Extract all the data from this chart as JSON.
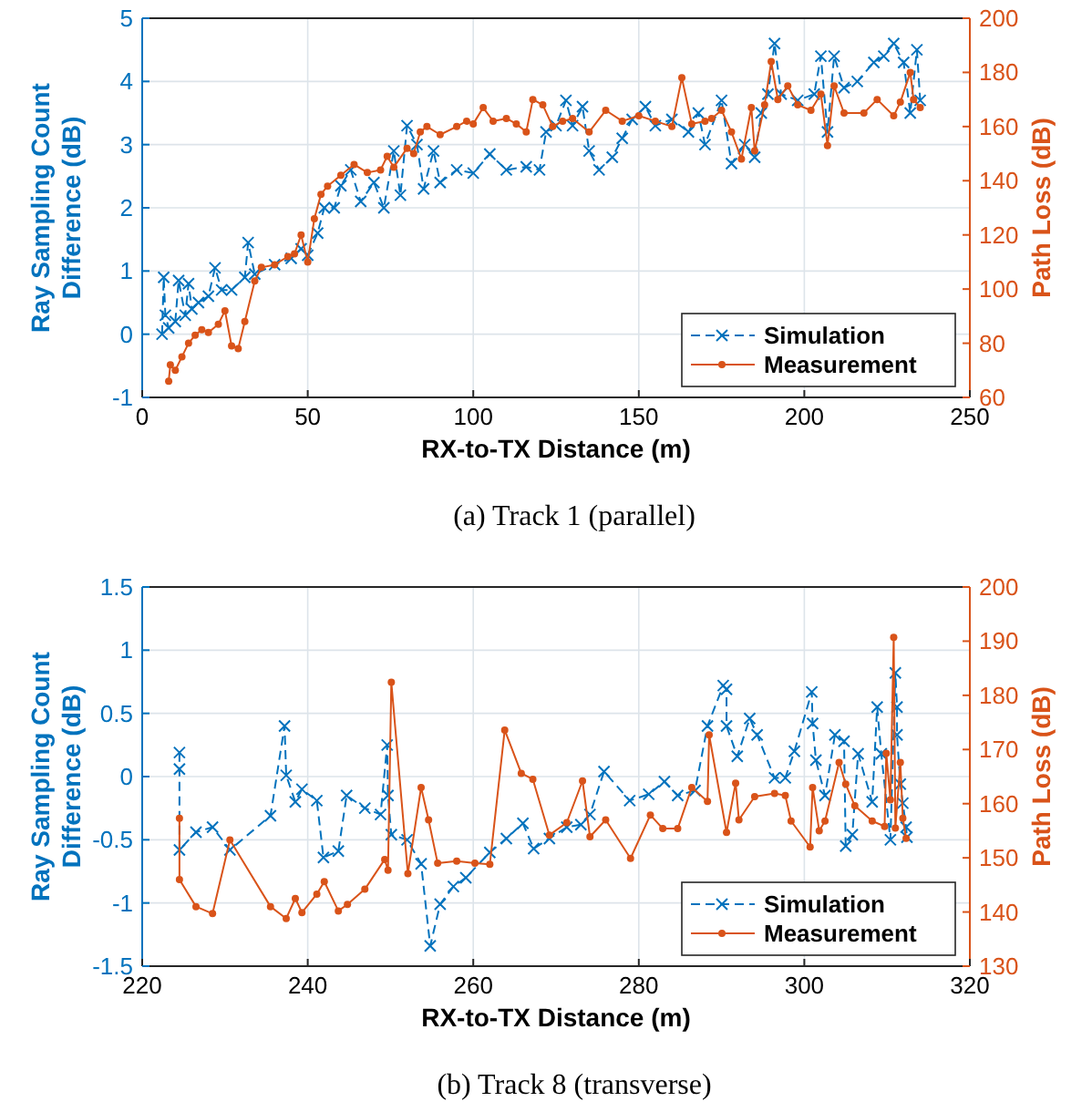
{
  "chart_data": [
    {
      "type": "line",
      "xlabel": "RX-to-TX Distance (m)",
      "ylabel": "Ray Sampling Count Difference (dB)",
      "y2label": "Path Loss (dB)",
      "annotations": [
        "(a) Track 1 (parallel)"
      ],
      "xlim": [
        0,
        250
      ],
      "xticks": [
        0,
        50,
        100,
        150,
        200,
        250
      ],
      "ylim": [
        -1,
        5
      ],
      "yticks": [
        -1,
        0,
        1,
        2,
        3,
        4,
        5
      ],
      "y2lim": [
        60,
        200
      ],
      "y2ticks": [
        60,
        80,
        100,
        120,
        140,
        160,
        180,
        200
      ],
      "grid": true,
      "legend": "bottom right",
      "series": [
        {
          "name": "Simulation",
          "color": "#0072bd",
          "axis": "y",
          "marker": "cross",
          "line_style": "dashed",
          "x": [
            6,
            6.5,
            7,
            8,
            10,
            11,
            13,
            14,
            15,
            17,
            20,
            22,
            24,
            27,
            31,
            32,
            34,
            40,
            45,
            48,
            50,
            53,
            55,
            58,
            60,
            63,
            66,
            70,
            73,
            76,
            78,
            80,
            83,
            85,
            88,
            90,
            95,
            100,
            105,
            110,
            116,
            120,
            122,
            125,
            128,
            130,
            133,
            135,
            138,
            142,
            145,
            148,
            152,
            155,
            160,
            165,
            168,
            170,
            175,
            178,
            182,
            185,
            187,
            189,
            191,
            193,
            198,
            203,
            205,
            207,
            209,
            212,
            216,
            221,
            224,
            227,
            230,
            232,
            234,
            235
          ],
          "values": [
            0,
            0.9,
            0.3,
            0.1,
            0.2,
            0.85,
            0.3,
            0.8,
            0.4,
            0.5,
            0.6,
            1.05,
            0.7,
            0.7,
            0.9,
            1.45,
            0.95,
            1.1,
            1.2,
            1.35,
            1.25,
            1.6,
            2,
            2,
            2.35,
            2.6,
            2.1,
            2.4,
            2,
            2.9,
            2.2,
            3.3,
            3,
            2.3,
            2.9,
            2.4,
            2.6,
            2.55,
            2.85,
            2.6,
            2.65,
            2.6,
            3.2,
            3.3,
            3.7,
            3.3,
            3.6,
            2.9,
            2.6,
            2.8,
            3.1,
            3.4,
            3.6,
            3.3,
            3.4,
            3.2,
            3.5,
            3,
            3.7,
            2.7,
            3,
            2.8,
            3.5,
            3.8,
            4.6,
            3.8,
            3.7,
            3.8,
            4.4,
            3.2,
            4.4,
            3.9,
            4,
            4.3,
            4.4,
            4.6,
            4.3,
            3.5,
            4.5,
            3.7
          ]
        },
        {
          "name": "Measurement",
          "color": "#d95319",
          "axis": "y2",
          "marker": "circle",
          "line_style": "solid",
          "x": [
            8,
            8.5,
            10,
            12,
            14,
            16,
            18,
            20,
            23,
            25,
            27,
            29,
            31,
            34,
            36,
            40,
            44,
            46,
            48,
            50,
            52,
            54,
            56,
            60,
            64,
            68,
            72,
            74,
            76,
            80,
            82,
            84,
            86,
            90,
            95,
            98,
            100,
            103,
            106,
            110,
            113,
            116,
            118,
            121,
            124,
            127,
            130,
            135,
            140,
            145,
            150,
            155,
            160,
            163,
            166,
            170,
            172,
            175,
            178,
            181,
            184,
            185,
            188,
            190,
            192,
            195,
            198,
            202,
            205,
            207,
            209,
            212,
            218,
            222,
            227,
            229,
            232,
            233,
            235
          ],
          "values": [
            66,
            72,
            70,
            75,
            80,
            83,
            85,
            84,
            87,
            92,
            79,
            78,
            88,
            103,
            108,
            109,
            112,
            113,
            120,
            110,
            126,
            135,
            138,
            142,
            146,
            143,
            144,
            149,
            145,
            152,
            150,
            158,
            160,
            157,
            160,
            162,
            161,
            167,
            162,
            163,
            161,
            158,
            170,
            168,
            160,
            162,
            163,
            158,
            166,
            162,
            164,
            162,
            160,
            178,
            161,
            162,
            163,
            166,
            158,
            148,
            167,
            151,
            168,
            184,
            170,
            175,
            168,
            166,
            172,
            153,
            175,
            165,
            165,
            170,
            164,
            169,
            180,
            170,
            167
          ]
        }
      ]
    },
    {
      "type": "line",
      "xlabel": "RX-to-TX Distance (m)",
      "ylabel": "Ray Sampling Count Difference (dB)",
      "y2label": "Path Loss (dB)",
      "annotations": [
        "(b) Track 8 (transverse)"
      ],
      "xlim": [
        220,
        320
      ],
      "xticks": [
        220,
        240,
        260,
        280,
        300,
        320
      ],
      "ylim": [
        -1.5,
        1.5
      ],
      "yticks": [
        -1.5,
        -1,
        -0.5,
        0,
        0.5,
        1,
        1.5
      ],
      "y2lim": [
        130,
        200
      ],
      "y2ticks": [
        130,
        140,
        150,
        160,
        170,
        180,
        190,
        200
      ],
      "grid": true,
      "legend": "bottom right",
      "series": [
        {
          "name": "Simulation",
          "color": "#0072bd",
          "axis": "y",
          "marker": "cross",
          "line_style": "dashed",
          "x": [
            224.5,
            224.5,
            224.5,
            226.5,
            228.5,
            230.6,
            235.5,
            237.2,
            237.4,
            238.5,
            239.3,
            241.1,
            241.9,
            243.7,
            244.7,
            246.9,
            248.8,
            249.6,
            249.7,
            250.1,
            252,
            253.7,
            254.8,
            256,
            257.6,
            259.1,
            262,
            264,
            266,
            267.3,
            269.2,
            271.3,
            273,
            274.1,
            275.8,
            278.9,
            281.2,
            283.1,
            284.7,
            286.8,
            288.3,
            290.2,
            290.6,
            290.6,
            291.9,
            293.4,
            294.3,
            296.4,
            297.7,
            298.8,
            300.9,
            301,
            301.4,
            302.5,
            303.7,
            304.8,
            305,
            305.8,
            306.5,
            308.2,
            308.8,
            309.3,
            310.4,
            311,
            311.2,
            311.2,
            311.6,
            311.9,
            312.3,
            312.4
          ],
          "values": [
            0.19,
            0.06,
            -0.58,
            -0.44,
            -0.4,
            -0.58,
            -0.31,
            0.4,
            0.01,
            -0.2,
            -0.1,
            -0.19,
            -0.64,
            -0.59,
            -0.15,
            -0.25,
            -0.3,
            0.25,
            -0.15,
            -0.46,
            -0.5,
            -0.69,
            -1.34,
            -1.01,
            -0.87,
            -0.8,
            -0.6,
            -0.49,
            -0.37,
            -0.57,
            -0.49,
            -0.4,
            -0.38,
            -0.3,
            0.04,
            -0.19,
            -0.14,
            -0.04,
            -0.15,
            -0.11,
            0.4,
            0.72,
            0.69,
            0.4,
            0.16,
            0.46,
            0.33,
            -0.01,
            -0.01,
            0.2,
            0.67,
            0.42,
            0.13,
            -0.15,
            0.33,
            0.28,
            -0.55,
            -0.46,
            0.18,
            -0.2,
            0.55,
            0.18,
            -0.5,
            0.82,
            0.55,
            0.33,
            -0.06,
            -0.21,
            -0.4,
            -0.48
          ]
        },
        {
          "name": "Measurement",
          "color": "#d95319",
          "axis": "y2",
          "marker": "circle",
          "line_style": "solid",
          "x": [
            224.5,
            224.5,
            226.5,
            228.5,
            230.6,
            235.5,
            237.4,
            238.5,
            239.3,
            241.1,
            242,
            243.7,
            244.8,
            246.9,
            249.3,
            249.7,
            250.1,
            252.1,
            253.7,
            254.6,
            255.7,
            258,
            260.2,
            262,
            263.8,
            265.8,
            267.2,
            269.2,
            271.3,
            273.2,
            274.1,
            276,
            279,
            281.4,
            282.9,
            284.7,
            286.4,
            288.3,
            288.5,
            290.6,
            291.7,
            292.1,
            294,
            296.4,
            297.7,
            298.4,
            300.7,
            301,
            301.8,
            302.5,
            304.2,
            305,
            306.1,
            308.2,
            309.7,
            309.9,
            310.4,
            310.8,
            311,
            311.6,
            311.9,
            312.3
          ],
          "values": [
            157.3,
            146,
            141,
            139.7,
            153.3,
            141,
            138.8,
            142.5,
            139.9,
            143.3,
            145.6,
            140.2,
            141.4,
            144.2,
            149.7,
            147.7,
            182.4,
            147.1,
            163,
            157,
            149,
            149.4,
            149,
            148.8,
            173.6,
            165.6,
            164.5,
            154.2,
            156.5,
            164.2,
            153.9,
            157,
            149.9,
            157.9,
            155.4,
            155.4,
            163,
            160.4,
            172.7,
            154.7,
            163.8,
            157,
            161.3,
            161.9,
            161.5,
            156.8,
            152,
            163,
            155,
            156.8,
            167.6,
            163.6,
            159.6,
            156.8,
            155.8,
            169.3,
            160.7,
            190.7,
            155.5,
            167.6,
            157.3,
            153.6
          ]
        }
      ]
    }
  ]
}
